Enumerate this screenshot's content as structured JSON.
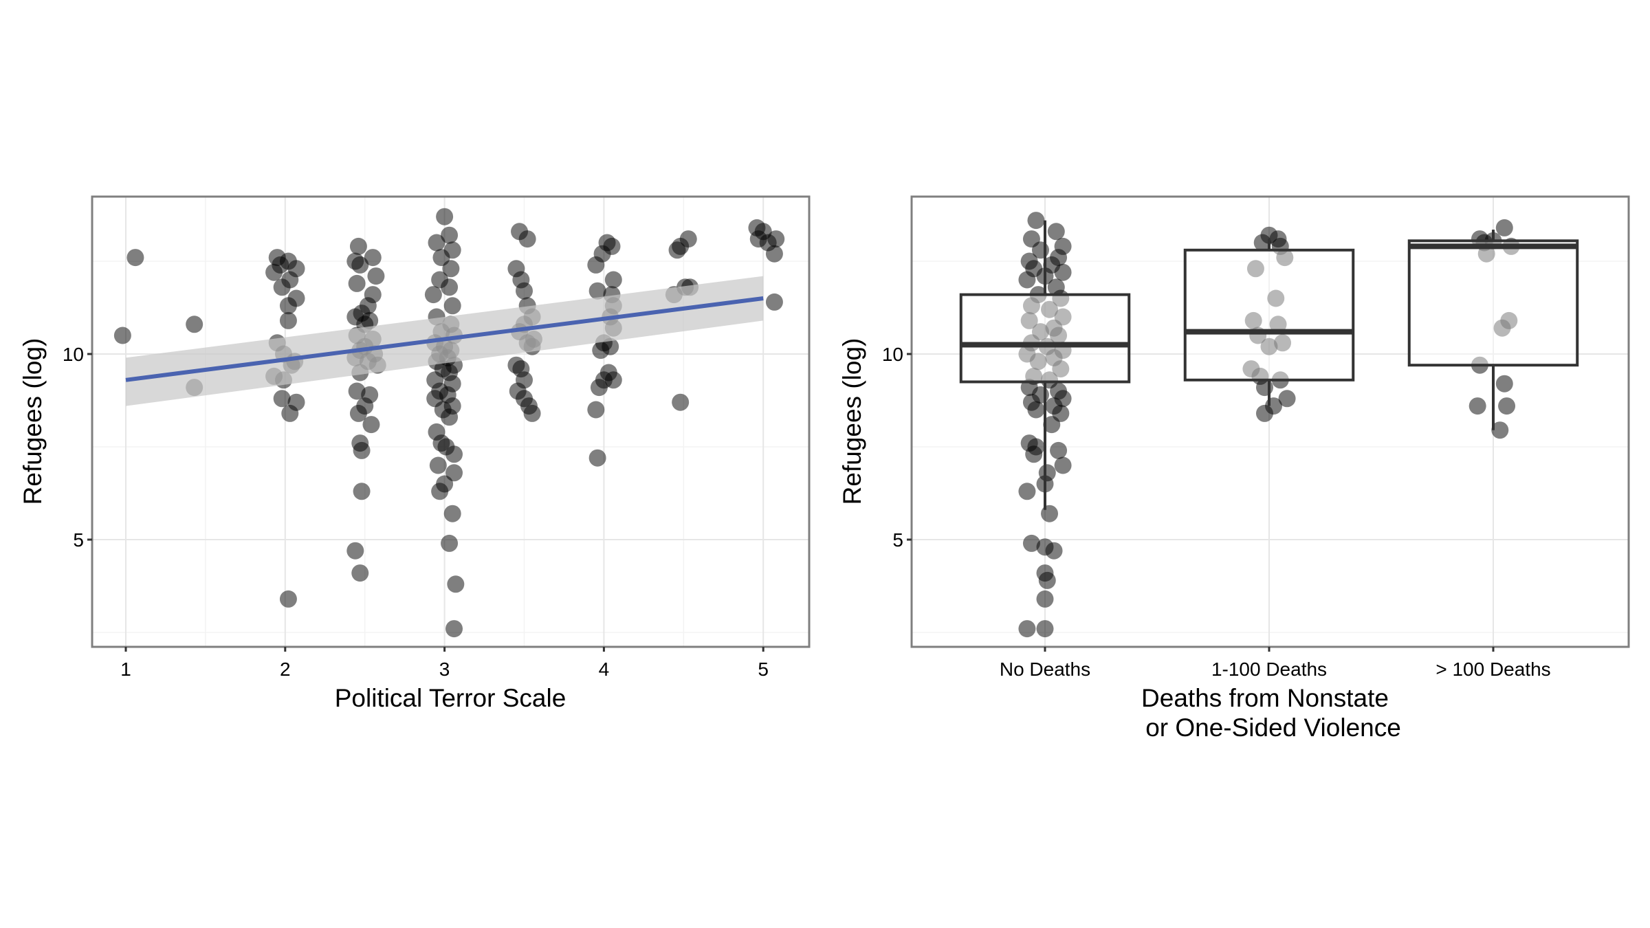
{
  "chart_data": [
    {
      "type": "scatter",
      "xlabel": "Political Terror Scale",
      "ylabel": "Refugees (log)",
      "xlim": [
        0.79,
        5.29
      ],
      "ylim": [
        2.1,
        14.25
      ],
      "xticks": [
        "1",
        "2",
        "3",
        "4",
        "5"
      ],
      "yticks": [
        "5",
        "10"
      ],
      "grid": true,
      "point_color": "#000000",
      "point_alpha": 0.5,
      "fit": {
        "method": "linear",
        "color": "#4a63b0",
        "band_color": "#c8c8c8",
        "x": [
          1,
          5
        ],
        "y": [
          9.3,
          11.5
        ],
        "ci_low": [
          8.6,
          10.9
        ],
        "ci_high": [
          9.9,
          12.1
        ]
      },
      "points": [
        [
          0.98,
          10.5
        ],
        [
          1.06,
          12.6
        ],
        [
          1.43,
          10.8
        ],
        [
          1.43,
          9.1
        ],
        [
          1.95,
          12.6
        ],
        [
          2.02,
          12.5
        ],
        [
          1.97,
          12.4
        ],
        [
          2.07,
          12.3
        ],
        [
          1.93,
          12.2
        ],
        [
          2.03,
          12.0
        ],
        [
          1.98,
          11.8
        ],
        [
          2.07,
          11.5
        ],
        [
          2.02,
          11.3
        ],
        [
          2.02,
          10.9
        ],
        [
          1.95,
          10.3
        ],
        [
          1.99,
          10.0
        ],
        [
          2.06,
          9.8
        ],
        [
          2.04,
          9.7
        ],
        [
          1.93,
          9.4
        ],
        [
          1.99,
          9.3
        ],
        [
          1.98,
          8.8
        ],
        [
          2.07,
          8.7
        ],
        [
          2.03,
          8.4
        ],
        [
          2.02,
          3.4
        ],
        [
          2.46,
          12.9
        ],
        [
          2.44,
          12.5
        ],
        [
          2.47,
          12.4
        ],
        [
          2.55,
          12.6
        ],
        [
          2.57,
          12.1
        ],
        [
          2.45,
          11.9
        ],
        [
          2.55,
          11.6
        ],
        [
          2.52,
          11.3
        ],
        [
          2.48,
          11.1
        ],
        [
          2.44,
          11.0
        ],
        [
          2.53,
          10.9
        ],
        [
          2.5,
          10.8
        ],
        [
          2.45,
          10.5
        ],
        [
          2.55,
          10.4
        ],
        [
          2.5,
          10.2
        ],
        [
          2.47,
          10.1
        ],
        [
          2.56,
          10.0
        ],
        [
          2.44,
          9.9
        ],
        [
          2.52,
          9.8
        ],
        [
          2.58,
          9.7
        ],
        [
          2.47,
          9.5
        ],
        [
          2.45,
          9.0
        ],
        [
          2.53,
          8.9
        ],
        [
          2.5,
          8.6
        ],
        [
          2.46,
          8.4
        ],
        [
          2.54,
          8.1
        ],
        [
          2.47,
          7.6
        ],
        [
          2.48,
          7.4
        ],
        [
          2.48,
          6.3
        ],
        [
          2.44,
          4.7
        ],
        [
          2.47,
          4.1
        ],
        [
          3.0,
          13.7
        ],
        [
          3.03,
          13.2
        ],
        [
          2.95,
          13.0
        ],
        [
          3.05,
          12.8
        ],
        [
          2.98,
          12.6
        ],
        [
          3.04,
          12.3
        ],
        [
          2.97,
          12.0
        ],
        [
          3.03,
          11.8
        ],
        [
          2.93,
          11.6
        ],
        [
          3.05,
          11.3
        ],
        [
          2.95,
          11.0
        ],
        [
          3.04,
          10.8
        ],
        [
          2.98,
          10.6
        ],
        [
          3.06,
          10.5
        ],
        [
          2.94,
          10.3
        ],
        [
          3.0,
          10.2
        ],
        [
          3.04,
          10.1
        ],
        [
          2.97,
          10.0
        ],
        [
          3.02,
          9.9
        ],
        [
          2.95,
          9.8
        ],
        [
          3.06,
          9.7
        ],
        [
          2.99,
          9.6
        ],
        [
          3.03,
          9.5
        ],
        [
          2.94,
          9.3
        ],
        [
          3.05,
          9.2
        ],
        [
          2.97,
          9.0
        ],
        [
          3.02,
          8.9
        ],
        [
          2.94,
          8.8
        ],
        [
          3.05,
          8.6
        ],
        [
          2.99,
          8.5
        ],
        [
          3.03,
          8.3
        ],
        [
          2.95,
          7.9
        ],
        [
          2.98,
          7.6
        ],
        [
          3.01,
          7.5
        ],
        [
          3.06,
          7.3
        ],
        [
          2.96,
          7.0
        ],
        [
          3.06,
          6.8
        ],
        [
          3.0,
          6.5
        ],
        [
          2.97,
          6.3
        ],
        [
          3.05,
          5.7
        ],
        [
          3.03,
          4.9
        ],
        [
          3.07,
          3.8
        ],
        [
          3.06,
          2.6
        ],
        [
          3.47,
          13.3
        ],
        [
          3.52,
          13.1
        ],
        [
          3.45,
          12.3
        ],
        [
          3.48,
          12.0
        ],
        [
          3.5,
          11.7
        ],
        [
          3.52,
          11.3
        ],
        [
          3.55,
          11.0
        ],
        [
          3.5,
          10.8
        ],
        [
          3.47,
          10.6
        ],
        [
          3.56,
          10.4
        ],
        [
          3.52,
          10.3
        ],
        [
          3.55,
          10.2
        ],
        [
          3.45,
          9.7
        ],
        [
          3.48,
          9.6
        ],
        [
          3.5,
          9.3
        ],
        [
          3.46,
          9.0
        ],
        [
          3.5,
          8.8
        ],
        [
          3.53,
          8.6
        ],
        [
          3.55,
          8.4
        ],
        [
          4.02,
          13.0
        ],
        [
          4.05,
          12.9
        ],
        [
          3.99,
          12.7
        ],
        [
          3.95,
          12.4
        ],
        [
          4.06,
          12.0
        ],
        [
          3.96,
          11.7
        ],
        [
          4.05,
          11.6
        ],
        [
          4.06,
          11.3
        ],
        [
          4.04,
          11.0
        ],
        [
          4.06,
          10.7
        ],
        [
          4.0,
          10.3
        ],
        [
          4.04,
          10.2
        ],
        [
          3.98,
          10.1
        ],
        [
          4.03,
          9.5
        ],
        [
          4.0,
          9.3
        ],
        [
          4.06,
          9.3
        ],
        [
          3.97,
          9.1
        ],
        [
          3.95,
          8.5
        ],
        [
          3.96,
          7.2
        ],
        [
          4.53,
          13.1
        ],
        [
          4.48,
          12.9
        ],
        [
          4.46,
          12.8
        ],
        [
          4.54,
          11.8
        ],
        [
          4.51,
          11.8
        ],
        [
          4.44,
          11.6
        ],
        [
          4.48,
          8.7
        ],
        [
          4.96,
          13.4
        ],
        [
          5.0,
          13.3
        ],
        [
          5.08,
          13.1
        ],
        [
          4.97,
          13.1
        ],
        [
          5.03,
          13.0
        ],
        [
          5.07,
          12.7
        ],
        [
          5.07,
          11.4
        ]
      ]
    },
    {
      "type": "box",
      "xlabel": "Deaths from Nonstate\nor One-Sided Violence",
      "xlabel_lines": [
        "Deaths from Nonstate",
        "or One-Sided Violence"
      ],
      "ylabel": "Refugees (log)",
      "ylim": [
        2.1,
        14.25
      ],
      "yticks": [
        "5",
        "10"
      ],
      "categories": [
        "No Deaths",
        "1-100 Deaths",
        "> 100 Deaths"
      ],
      "grid": true,
      "boxes": [
        {
          "whisker_low": 5.8,
          "q1": 9.25,
          "median": 10.25,
          "q3": 11.6,
          "whisker_high": 13.6
        },
        {
          "whisker_low": 8.6,
          "q1": 9.3,
          "median": 10.6,
          "q3": 12.8,
          "whisker_high": 13.1
        },
        {
          "whisker_low": 7.95,
          "q1": 9.7,
          "median": 12.9,
          "q3": 13.05,
          "whisker_high": 13.35
        }
      ],
      "points": [
        {
          "category": 0,
          "jitter": [
            [
              -0.04,
              13.6
            ],
            [
              0.05,
              13.3
            ],
            [
              -0.06,
              13.1
            ],
            [
              0.08,
              12.9
            ],
            [
              -0.02,
              12.8
            ],
            [
              0.06,
              12.6
            ],
            [
              -0.07,
              12.5
            ],
            [
              0.03,
              12.4
            ],
            [
              -0.05,
              12.3
            ],
            [
              0.08,
              12.2
            ],
            [
              0.0,
              12.1
            ],
            [
              -0.08,
              12.0
            ],
            [
              0.05,
              11.8
            ],
            [
              -0.03,
              11.6
            ],
            [
              0.07,
              11.5
            ],
            [
              -0.06,
              11.3
            ],
            [
              0.02,
              11.2
            ],
            [
              0.08,
              11.0
            ],
            [
              -0.07,
              10.9
            ],
            [
              0.04,
              10.7
            ],
            [
              -0.02,
              10.6
            ],
            [
              0.06,
              10.5
            ],
            [
              -0.06,
              10.3
            ],
            [
              0.01,
              10.2
            ],
            [
              0.08,
              10.1
            ],
            [
              -0.08,
              10.0
            ],
            [
              0.04,
              9.9
            ],
            [
              -0.03,
              9.8
            ],
            [
              0.07,
              9.6
            ],
            [
              -0.05,
              9.4
            ],
            [
              0.02,
              9.3
            ],
            [
              -0.07,
              9.1
            ],
            [
              0.06,
              9.0
            ],
            [
              -0.02,
              8.9
            ],
            [
              0.08,
              8.8
            ],
            [
              -0.06,
              8.7
            ],
            [
              0.04,
              8.6
            ],
            [
              -0.04,
              8.5
            ],
            [
              0.07,
              8.4
            ],
            [
              0.03,
              8.1
            ],
            [
              -0.07,
              7.6
            ],
            [
              -0.04,
              7.5
            ],
            [
              0.06,
              7.4
            ],
            [
              -0.05,
              7.3
            ],
            [
              0.08,
              7.0
            ],
            [
              0.01,
              6.8
            ],
            [
              0.0,
              6.5
            ],
            [
              -0.08,
              6.3
            ],
            [
              0.02,
              5.7
            ],
            [
              -0.06,
              4.9
            ],
            [
              0.0,
              4.8
            ],
            [
              0.04,
              4.7
            ],
            [
              0.0,
              4.1
            ],
            [
              0.01,
              3.9
            ],
            [
              0.0,
              3.4
            ],
            [
              -0.08,
              2.6
            ],
            [
              0.0,
              2.6
            ]
          ]
        },
        {
          "category": 1,
          "jitter": [
            [
              0.0,
              13.2
            ],
            [
              0.04,
              13.1
            ],
            [
              -0.03,
              13.0
            ],
            [
              0.05,
              12.9
            ],
            [
              0.07,
              12.6
            ],
            [
              -0.06,
              12.3
            ],
            [
              0.03,
              11.5
            ],
            [
              -0.07,
              10.9
            ],
            [
              0.04,
              10.8
            ],
            [
              -0.05,
              10.5
            ],
            [
              0.06,
              10.3
            ],
            [
              0.0,
              10.2
            ],
            [
              -0.08,
              9.6
            ],
            [
              -0.04,
              9.4
            ],
            [
              0.05,
              9.3
            ],
            [
              -0.02,
              9.1
            ],
            [
              0.08,
              8.8
            ],
            [
              0.02,
              8.6
            ],
            [
              -0.02,
              8.4
            ]
          ]
        },
        {
          "category": 2,
          "jitter": [
            [
              0.05,
              13.4
            ],
            [
              -0.06,
              13.1
            ],
            [
              0.0,
              13.05
            ],
            [
              -0.04,
              13.0
            ],
            [
              0.08,
              12.9
            ],
            [
              -0.03,
              12.7
            ],
            [
              0.07,
              10.9
            ],
            [
              0.04,
              10.7
            ],
            [
              -0.06,
              9.7
            ],
            [
              0.05,
              9.2
            ],
            [
              -0.07,
              8.6
            ],
            [
              0.06,
              8.6
            ],
            [
              0.03,
              7.95
            ]
          ]
        }
      ]
    }
  ]
}
